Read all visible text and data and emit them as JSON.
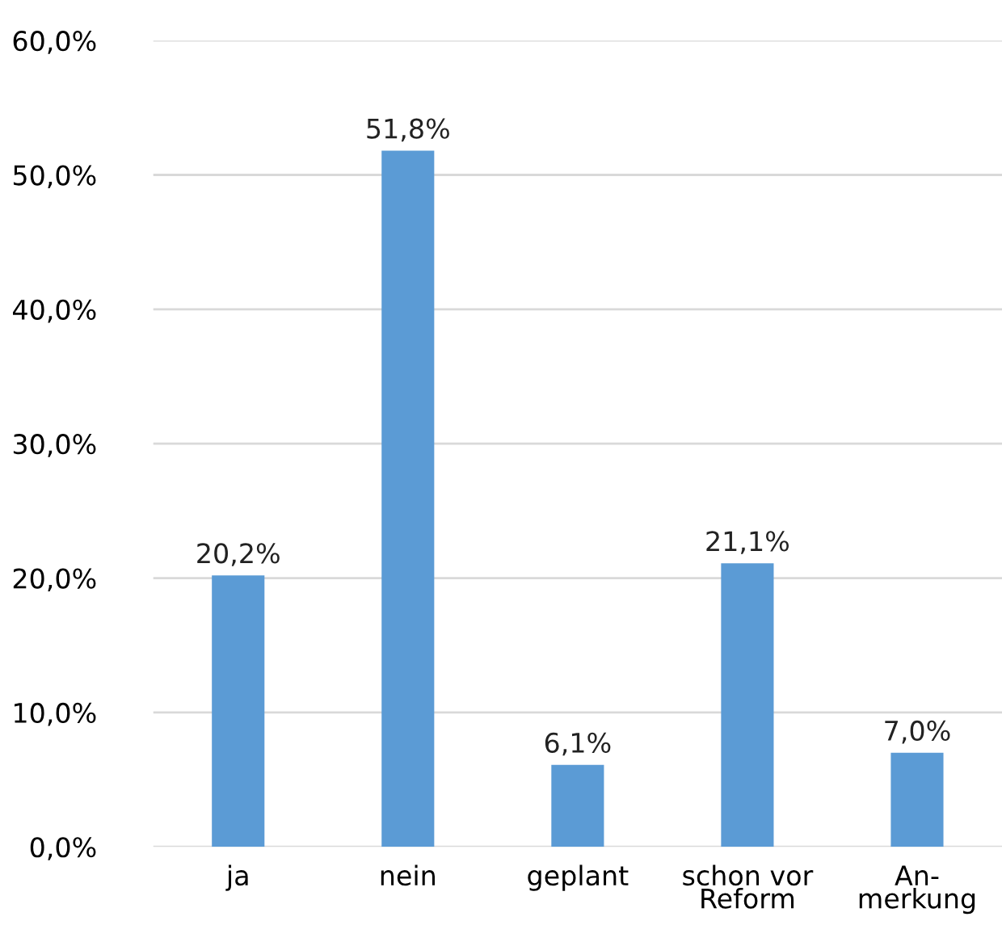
{
  "chart_data": {
    "type": "bar",
    "categories": [
      "ja",
      "nein",
      "geplant",
      "schon vor\nReform",
      "An-\nmerkung"
    ],
    "values": [
      20.2,
      51.8,
      6.1,
      21.1,
      7.0
    ],
    "value_labels": [
      "20,2%",
      "51,8%",
      "6,1%",
      "21,1%",
      "7,0%"
    ],
    "color": "#5b9bd5",
    "ylim": [
      0,
      60
    ],
    "yticks": [
      {
        "value": 0,
        "label": "0,0%"
      },
      {
        "value": 10,
        "label": "10,0%"
      },
      {
        "value": 20,
        "label": "20,0%"
      },
      {
        "value": 30,
        "label": "30,0%"
      },
      {
        "value": 40,
        "label": "40,0%"
      },
      {
        "value": 50,
        "label": "50,0%"
      },
      {
        "value": 60,
        "label": "60,0%"
      }
    ],
    "grid": "y",
    "legend": false
  }
}
